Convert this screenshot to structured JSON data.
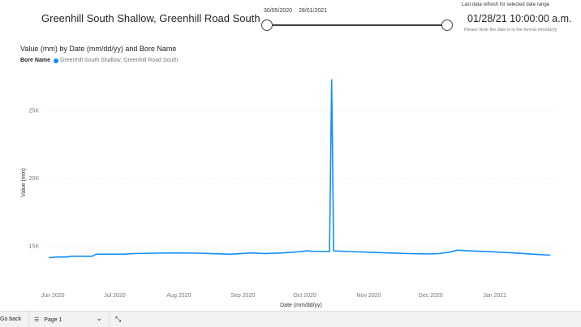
{
  "header": {
    "title": "Greenhill South Shallow, Greenhill Road South"
  },
  "date_slicer": {
    "start": "30/05/2020",
    "end": "28/01/2021",
    "position_start": 0,
    "position_end": 1
  },
  "refresh": {
    "label": "Last data refresh for selected date range",
    "value": "01/28/21 10:00:00 a.m.",
    "note": "Please Note the date is in the format mm/dd/yy"
  },
  "chart_title": "Value (mm) by Date (mm/dd/yy) and Bore Name",
  "legend": {
    "title": "Bore Name",
    "item": "Greenhill South Shallow, Greenhill Road South"
  },
  "colors": {
    "series": "#118dff",
    "grid": "#e8e8e8"
  },
  "chart_data": {
    "type": "line",
    "title": "Value (mm) by Date (mm/dd/yy) and Bore Name",
    "xlabel": "Date (mm/dd/yy)",
    "ylabel": "Value (mm)",
    "x_ticks": [
      "Jun 2020",
      "Jul 2020",
      "Aug 2020",
      "Sep 2020",
      "Oct 2020",
      "Nov 2020",
      "Dec 2020",
      "Jan 2021"
    ],
    "y_ticks": [
      "15K",
      "20K",
      "25K"
    ],
    "ylim": [
      12500,
      27500
    ],
    "grid": true,
    "series": [
      {
        "name": "Greenhill South Shallow, Greenhill Road South",
        "points": [
          [
            "2020-05-30",
            14150
          ],
          [
            "2020-06-04",
            14200
          ],
          [
            "2020-06-08",
            14200
          ],
          [
            "2020-06-10",
            14250
          ],
          [
            "2020-06-20",
            14250
          ],
          [
            "2020-06-22",
            14400
          ],
          [
            "2020-07-05",
            14400
          ],
          [
            "2020-07-10",
            14450
          ],
          [
            "2020-07-20",
            14480
          ],
          [
            "2020-07-31",
            14500
          ],
          [
            "2020-08-10",
            14480
          ],
          [
            "2020-08-20",
            14430
          ],
          [
            "2020-08-26",
            14400
          ],
          [
            "2020-09-05",
            14500
          ],
          [
            "2020-09-12",
            14450
          ],
          [
            "2020-09-20",
            14500
          ],
          [
            "2020-09-28",
            14580
          ],
          [
            "2020-10-02",
            14650
          ],
          [
            "2020-10-05",
            14620
          ],
          [
            "2020-10-13",
            14600
          ],
          [
            "2020-10-14",
            27300
          ],
          [
            "2020-10-15",
            14650
          ],
          [
            "2020-10-22",
            14600
          ],
          [
            "2020-11-01",
            14550
          ],
          [
            "2020-11-10",
            14500
          ],
          [
            "2020-11-20",
            14450
          ],
          [
            "2020-11-30",
            14420
          ],
          [
            "2020-12-05",
            14450
          ],
          [
            "2020-12-10",
            14550
          ],
          [
            "2020-12-14",
            14700
          ],
          [
            "2020-12-20",
            14650
          ],
          [
            "2020-12-31",
            14580
          ],
          [
            "2021-01-10",
            14500
          ],
          [
            "2021-01-20",
            14400
          ],
          [
            "2021-01-28",
            14330
          ]
        ]
      }
    ]
  },
  "footer": {
    "go_back": "Go back",
    "page_label": "Page 1"
  }
}
